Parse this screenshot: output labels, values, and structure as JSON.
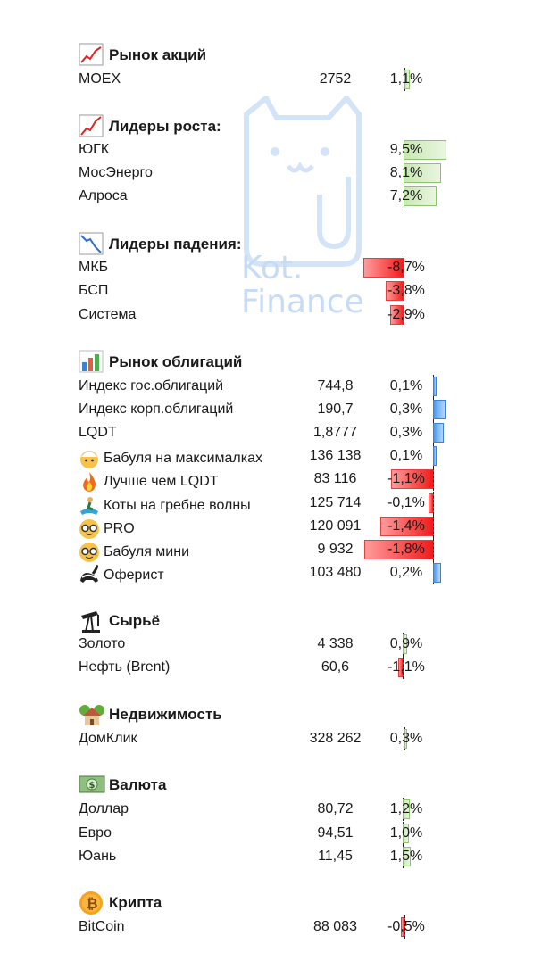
{
  "sections": {
    "stocks": {
      "title": "Рынок акций",
      "icon": "chart-up-icon",
      "rows": [
        {
          "name": "MOEX",
          "value": "2752",
          "pct": "1,1%",
          "change": 1.1
        }
      ]
    },
    "gainers": {
      "title": "Лидеры роста:",
      "icon": "chart-increasing-icon",
      "rows": [
        {
          "name": "ЮГК",
          "pct": "9,5%",
          "change": 9.5
        },
        {
          "name": "МосЭнерго",
          "pct": "8,1%",
          "change": 8.1
        },
        {
          "name": "Алроса",
          "pct": "7,2%",
          "change": 7.2
        }
      ]
    },
    "losers": {
      "title": "Лидеры падения:",
      "icon": "chart-decreasing-icon",
      "rows": [
        {
          "name": "МКБ",
          "pct": "-8,7%",
          "change": -8.7
        },
        {
          "name": "БСП",
          "pct": "-3,8%",
          "change": -3.8
        },
        {
          "name": "Система",
          "pct": "-2,9%",
          "change": -2.9
        }
      ]
    },
    "bonds": {
      "title": "Рынок облигаций",
      "icon": "bar-chart-icon",
      "rows": [
        {
          "name": "Индекс гос.облигаций",
          "value": "744,8",
          "pct": "0,1%",
          "change": 0.1,
          "icon": ""
        },
        {
          "name": "Индекс корп.облигаций",
          "value": "190,7",
          "pct": "0,3%",
          "change": 0.3,
          "icon": ""
        },
        {
          "name": "LQDT",
          "value": "1,8777",
          "pct": "0,3%",
          "change": 0.3,
          "icon": ""
        },
        {
          "name": "Бабуля на максималках",
          "value": "136 138",
          "pct": "0,1%",
          "change": 0.1,
          "icon": "old-woman-icon"
        },
        {
          "name": "Лучше чем LQDT",
          "value": "83 116",
          "pct": "-1,1%",
          "change": -1.1,
          "icon": "fire-icon"
        },
        {
          "name": "Коты на гребне волны",
          "value": "125 714",
          "pct": "-0,1%",
          "change": -0.1,
          "icon": "surfer-icon"
        },
        {
          "name": "PRO",
          "value": "120 091",
          "pct": "-1,4%",
          "change": -1.4,
          "icon": "nerd-face-icon"
        },
        {
          "name": "Бабуля мини",
          "value": "9 932",
          "pct": "-1,8%",
          "change": -1.8,
          "icon": "nerd-face-icon"
        },
        {
          "name": "Оферист",
          "value": "103 480",
          "pct": "0,2%",
          "change": 0.2,
          "icon": "skunk-icon"
        }
      ]
    },
    "commodities": {
      "title": "Сырьё",
      "icon": "oil-pump-icon",
      "rows": [
        {
          "name": "Золото",
          "value": "4 338",
          "pct": "0,9%",
          "change": 0.9
        },
        {
          "name": "Нефть (Brent)",
          "value": "60,6",
          "pct": "-1,1%",
          "change": -1.1
        }
      ]
    },
    "realty": {
      "title": "Недвижимость",
      "icon": "house-icon",
      "rows": [
        {
          "name": "ДомКлик",
          "value": "328 262",
          "pct": "0,3%",
          "change": 0.3
        }
      ]
    },
    "currency": {
      "title": "Валюта",
      "icon": "banknote-icon",
      "rows": [
        {
          "name": "Доллар",
          "value": "80,72",
          "pct": "1,2%",
          "change": 1.2
        },
        {
          "name": "Евро",
          "value": "94,51",
          "pct": "1,0%",
          "change": 1.0
        },
        {
          "name": "Юань",
          "value": "11,45",
          "pct": "1,5%",
          "change": 1.5
        }
      ]
    },
    "crypto": {
      "title": "Крипта",
      "icon": "bitcoin-icon",
      "rows": [
        {
          "name": "BitCoin",
          "value": "88 083",
          "pct": "-0,5%",
          "change": -0.5
        }
      ]
    }
  },
  "watermark": {
    "line1": "Kot.",
    "line2": "Finance"
  },
  "colors": {
    "positive": "#8cc46a",
    "negative": "#f21a1a",
    "bond_positive": "#4a9af0",
    "watermark": "#c7dbf5"
  }
}
